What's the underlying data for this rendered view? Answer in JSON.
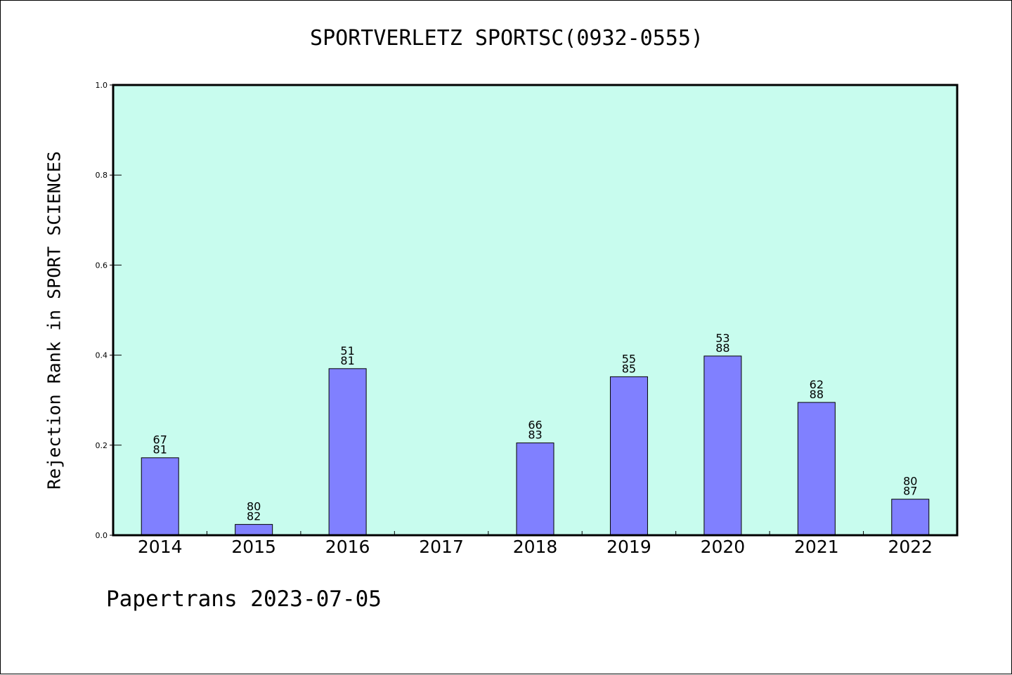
{
  "title": "SPORTVERLETZ SPORTSC(0932-0555)",
  "footer": "Papertrans 2023-07-05",
  "colors": {
    "plot_background": "#c8fcee",
    "bar_fill": "#8080ff",
    "bar_stroke": "#000000"
  },
  "chart_data": {
    "type": "bar",
    "title": "SPORTVERLETZ SPORTSC(0932-0555)",
    "xlabel": "",
    "ylabel": "Rejection Rank in SPORT SCIENCES",
    "ylim": [
      0.0,
      1.0
    ],
    "yticks": [
      "0.0",
      "0.2",
      "0.4",
      "0.6",
      "0.8",
      "1.0"
    ],
    "ytick_values": [
      0.0,
      0.2,
      0.4,
      0.6,
      0.8,
      1.0
    ],
    "grid": false,
    "categories": [
      "2014",
      "2015",
      "2016",
      "2017",
      "2018",
      "2019",
      "2020",
      "2021",
      "2022"
    ],
    "values": [
      0.172,
      0.024,
      0.37,
      null,
      0.205,
      0.352,
      0.398,
      0.295,
      0.08
    ],
    "labels_top": [
      "67",
      "80",
      "51",
      "",
      "66",
      "55",
      "53",
      "62",
      "80"
    ],
    "labels_bottom": [
      "81",
      "82",
      "81",
      "",
      "83",
      "85",
      "88",
      "88",
      "87"
    ]
  }
}
